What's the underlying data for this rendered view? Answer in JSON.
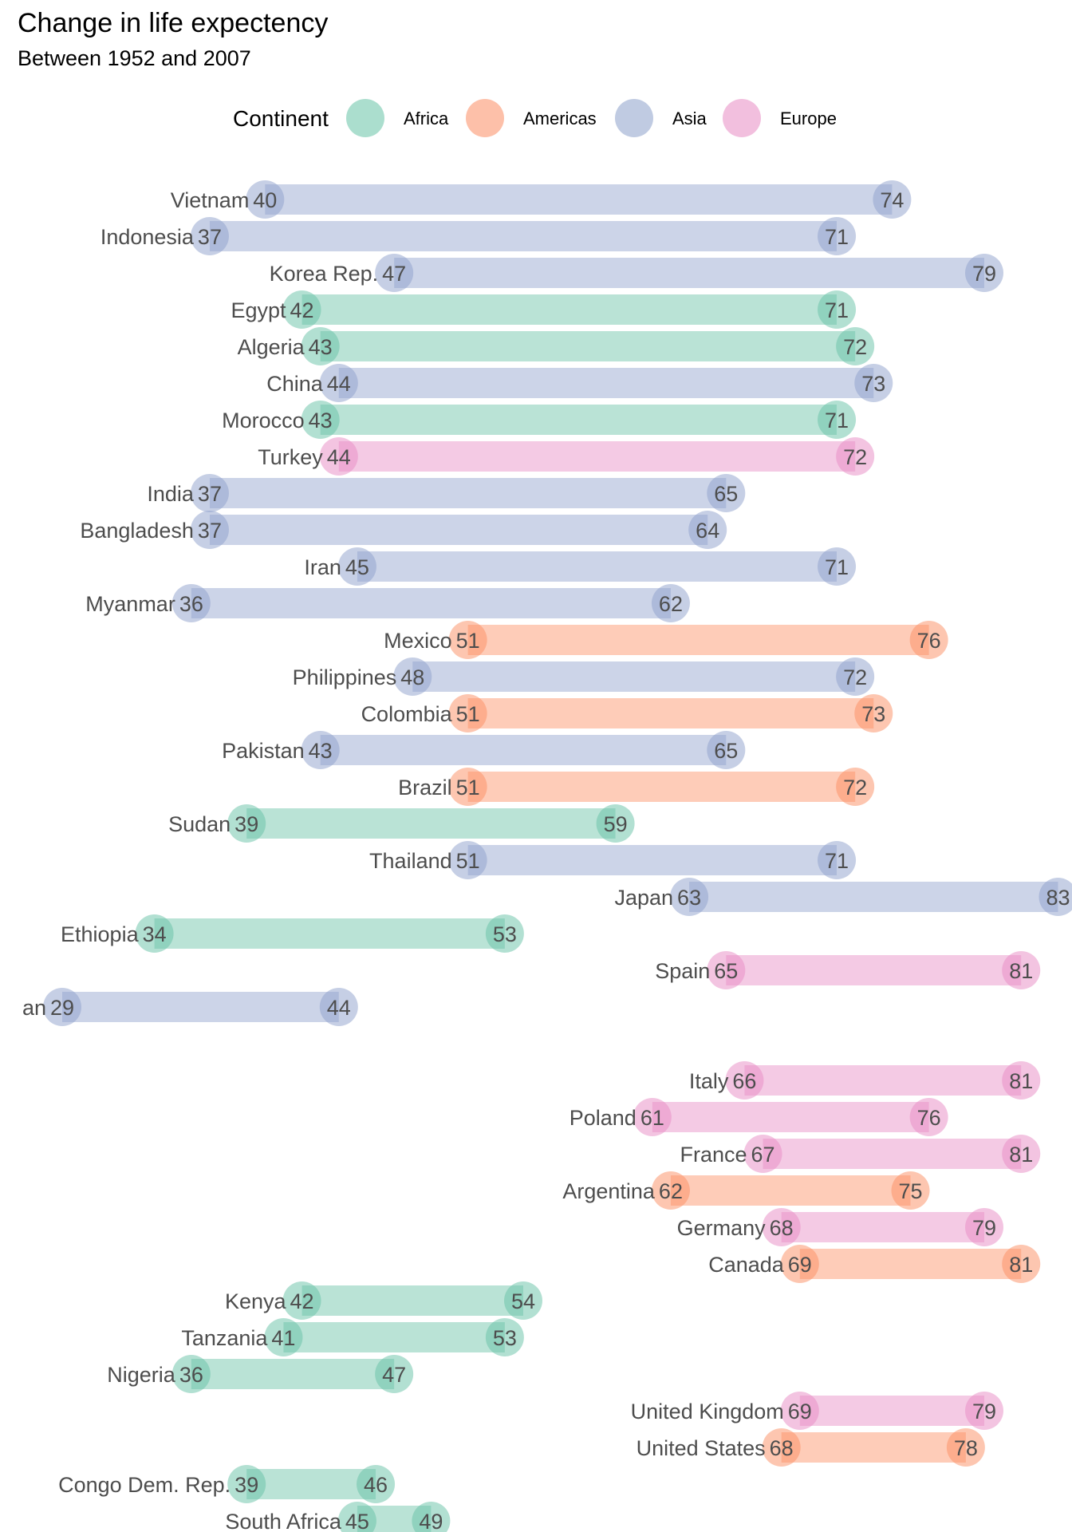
{
  "title": "Change in life expectency",
  "subtitle": "Between 1952 and 2007",
  "legend": {
    "title": "Continent",
    "items": [
      {
        "label": "Africa",
        "color": "#66c2a5"
      },
      {
        "label": "Americas",
        "color": "#fc8d62"
      },
      {
        "label": "Asia",
        "color": "#8da0cb"
      },
      {
        "label": "Europe",
        "color": "#e78ac3"
      }
    ]
  },
  "chart_data": {
    "type": "dumbbell",
    "title": "Change in life expectency",
    "subtitle": "Between 1952 and 2007",
    "x_range": [
      29,
      83
    ],
    "start_year": "1952",
    "end_year": "2007",
    "rows": [
      {
        "country": "Vietnam",
        "continent": "Asia",
        "start": 40,
        "end": 74
      },
      {
        "country": "Indonesia",
        "continent": "Asia",
        "start": 37,
        "end": 71
      },
      {
        "country": "Korea Rep.",
        "continent": "Asia",
        "start": 47,
        "end": 79
      },
      {
        "country": "Egypt",
        "continent": "Africa",
        "start": 42,
        "end": 71
      },
      {
        "country": "Algeria",
        "continent": "Africa",
        "start": 43,
        "end": 72
      },
      {
        "country": "China",
        "continent": "Asia",
        "start": 44,
        "end": 73
      },
      {
        "country": "Morocco",
        "continent": "Africa",
        "start": 43,
        "end": 71
      },
      {
        "country": "Turkey",
        "continent": "Europe",
        "start": 44,
        "end": 72
      },
      {
        "country": "India",
        "continent": "Asia",
        "start": 37,
        "end": 65
      },
      {
        "country": "Bangladesh",
        "continent": "Asia",
        "start": 37,
        "end": 64
      },
      {
        "country": "Iran",
        "continent": "Asia",
        "start": 45,
        "end": 71
      },
      {
        "country": "Myanmar",
        "continent": "Asia",
        "start": 36,
        "end": 62
      },
      {
        "country": "Mexico",
        "continent": "Americas",
        "start": 51,
        "end": 76
      },
      {
        "country": "Philippines",
        "continent": "Asia",
        "start": 48,
        "end": 72
      },
      {
        "country": "Colombia",
        "continent": "Americas",
        "start": 51,
        "end": 73
      },
      {
        "country": "Pakistan",
        "continent": "Asia",
        "start": 43,
        "end": 65
      },
      {
        "country": "Brazil",
        "continent": "Americas",
        "start": 51,
        "end": 72
      },
      {
        "country": "Sudan",
        "continent": "Africa",
        "start": 39,
        "end": 59
      },
      {
        "country": "Thailand",
        "continent": "Asia",
        "start": 51,
        "end": 71
      },
      {
        "country": "Japan",
        "continent": "Asia",
        "start": 63,
        "end": 83
      },
      {
        "country": "Ethiopia",
        "continent": "Africa",
        "start": 34,
        "end": 53
      },
      {
        "country": "Spain",
        "continent": "Europe",
        "start": 65,
        "end": 81
      },
      {
        "country": "an",
        "continent": "Asia",
        "start": 29,
        "end": 44
      },
      {
        "country": "",
        "continent": "",
        "start": null,
        "end": null
      },
      {
        "country": "Italy",
        "continent": "Europe",
        "start": 66,
        "end": 81
      },
      {
        "country": "Poland",
        "continent": "Europe",
        "start": 61,
        "end": 76
      },
      {
        "country": "France",
        "continent": "Europe",
        "start": 67,
        "end": 81
      },
      {
        "country": "Argentina",
        "continent": "Americas",
        "start": 62,
        "end": 75
      },
      {
        "country": "Germany",
        "continent": "Europe",
        "start": 68,
        "end": 79
      },
      {
        "country": "Canada",
        "continent": "Americas",
        "start": 69,
        "end": 81
      },
      {
        "country": "Kenya",
        "continent": "Africa",
        "start": 42,
        "end": 54
      },
      {
        "country": "Tanzania",
        "continent": "Africa",
        "start": 41,
        "end": 53
      },
      {
        "country": "Nigeria",
        "continent": "Africa",
        "start": 36,
        "end": 47
      },
      {
        "country": "United Kingdom",
        "continent": "Europe",
        "start": 69,
        "end": 79
      },
      {
        "country": "United States",
        "continent": "Americas",
        "start": 68,
        "end": 78
      },
      {
        "country": "Congo Dem. Rep.",
        "continent": "Africa",
        "start": 39,
        "end": 46
      },
      {
        "country": "South Africa",
        "continent": "Africa",
        "start": 45,
        "end": 49
      }
    ]
  }
}
